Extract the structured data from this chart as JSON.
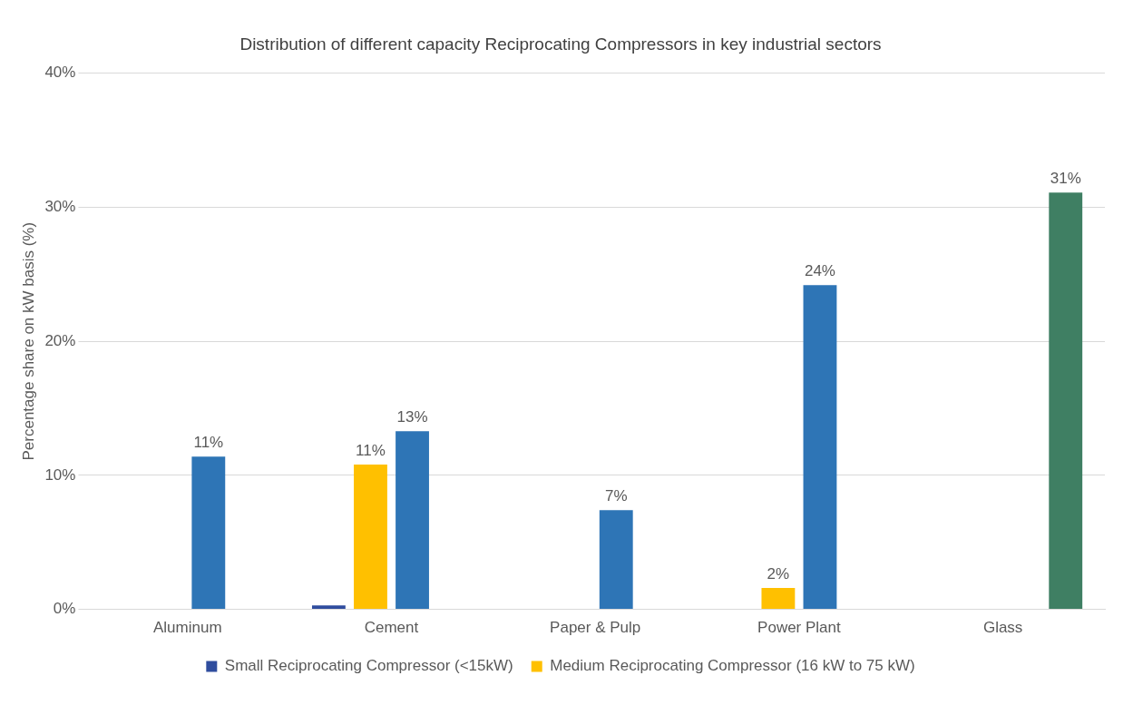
{
  "chart_data": {
    "type": "bar",
    "title": "Distribution of different capacity Reciprocating Compressors in key industrial sectors",
    "ylabel": "Percentage share on kW basis (%)",
    "categories": [
      "Aluminum",
      "Cement",
      "Paper & Pulp",
      "Power Plant",
      "Glass"
    ],
    "series": [
      {
        "name": "Small Reciprocating Compressor (<15kW)",
        "color": "#2f4d9e",
        "values": [
          null,
          0.3,
          null,
          null,
          null
        ],
        "value_labels": [
          null,
          null,
          null,
          null,
          null
        ]
      },
      {
        "name": "Medium Reciprocating Compressor (16 kW to 75 kW)",
        "color": "#ffc000",
        "values": [
          null,
          10.8,
          null,
          1.6,
          null
        ],
        "value_labels": [
          null,
          "11%",
          null,
          "2%",
          null
        ]
      },
      {
        "color": "#2e75b6",
        "values": [
          11.4,
          13.3,
          7.4,
          24.2,
          null
        ],
        "value_labels": [
          "11%",
          "13%",
          "7%",
          "24%",
          null
        ]
      },
      {
        "color": "#3f7f63",
        "values": [
          null,
          null,
          null,
          null,
          31.1
        ],
        "value_labels": [
          null,
          null,
          null,
          null,
          "31%"
        ]
      }
    ],
    "ylim": [
      0,
      40
    ],
    "yticks": [
      {
        "value": 0,
        "label": "0%"
      },
      {
        "value": 10,
        "label": "10%"
      },
      {
        "value": 20,
        "label": "20%"
      },
      {
        "value": 30,
        "label": "30%"
      },
      {
        "value": 40,
        "label": "40%"
      }
    ],
    "grid": "y",
    "legend": "bottom"
  }
}
